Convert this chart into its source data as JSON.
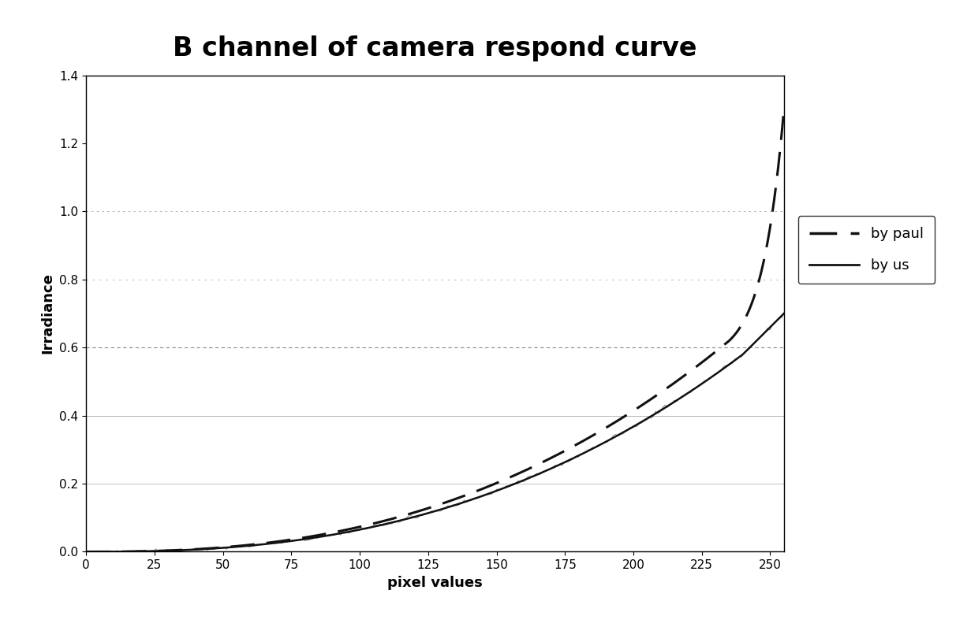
{
  "title": "B channel of camera respond curve",
  "xlabel": "pixel values",
  "ylabel": "Irradiance",
  "xlim": [
    0,
    255
  ],
  "ylim": [
    0,
    1.4
  ],
  "xticks": [
    0,
    25,
    50,
    75,
    100,
    125,
    150,
    175,
    200,
    225,
    250
  ],
  "yticks": [
    0,
    0.2,
    0.4,
    0.6,
    0.8,
    1.0,
    1.2,
    1.4
  ],
  "title_fontsize": 24,
  "label_fontsize": 13,
  "background_color": "#ffffff",
  "grid_color_fine": "#cccccc",
  "grid_color_medium": "#aaaaaa",
  "legend_labels": [
    "by paul",
    "by us"
  ],
  "paul_color": "#111111",
  "us_color": "#111111"
}
